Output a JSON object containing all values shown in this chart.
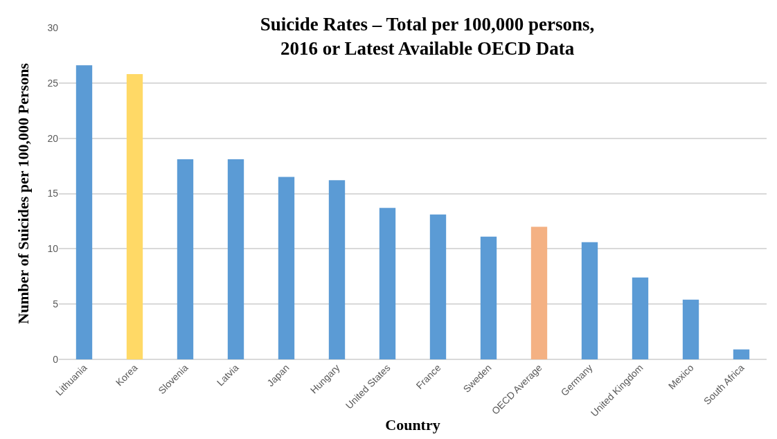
{
  "chart_data": {
    "type": "bar",
    "title": "Suicide Rates – Total per 100,000 persons,\n2016 or Latest Available OECD Data",
    "xlabel": "Country",
    "ylabel": "Number of Suicides per 100,000 Persons",
    "categories": [
      "Lithuania",
      "Korea",
      "Slovenia",
      "Latvia",
      "Japan",
      "Hungary",
      "United States",
      "France",
      "Sweden",
      "OECD Average",
      "Germany",
      "United Kingdom",
      "Mexico",
      "South Africa"
    ],
    "values": [
      26.6,
      25.8,
      18.1,
      18.1,
      16.5,
      16.2,
      13.7,
      13.1,
      11.1,
      12.0,
      10.6,
      7.4,
      5.4,
      0.9
    ],
    "colors": [
      "#5b9bd5",
      "#ffd966",
      "#5b9bd5",
      "#5b9bd5",
      "#5b9bd5",
      "#5b9bd5",
      "#5b9bd5",
      "#5b9bd5",
      "#5b9bd5",
      "#f4b183",
      "#5b9bd5",
      "#5b9bd5",
      "#5b9bd5",
      "#5b9bd5"
    ],
    "ylim": [
      0,
      30
    ],
    "yticks": [
      0,
      5,
      10,
      15,
      20,
      25,
      30
    ],
    "grid": "y",
    "legend": false
  }
}
